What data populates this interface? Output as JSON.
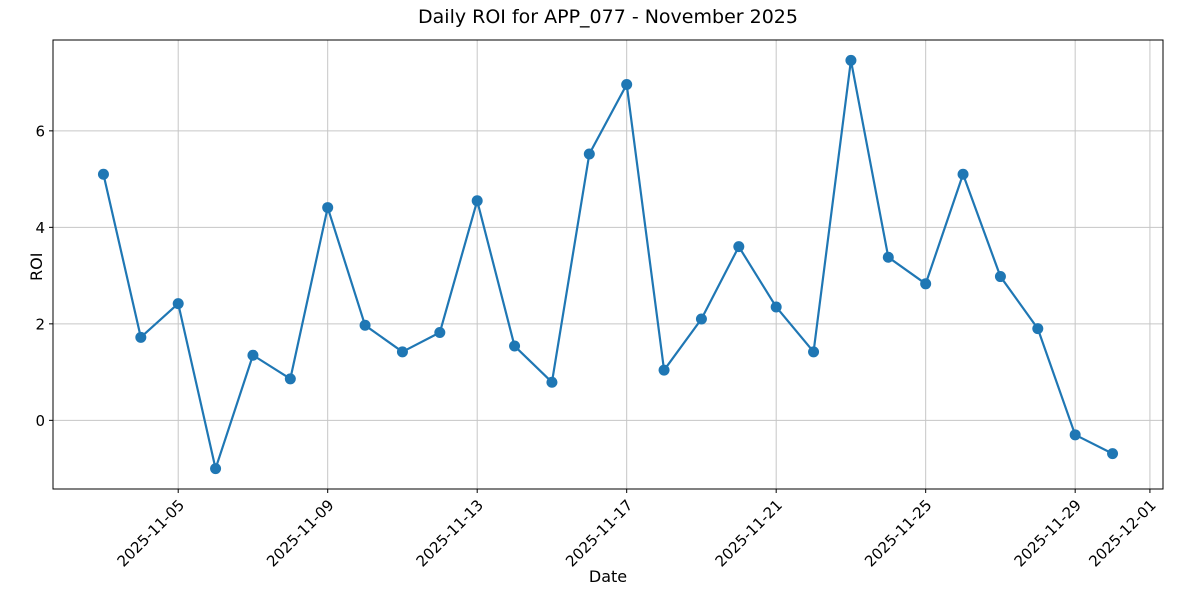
{
  "chart_data": {
    "type": "line",
    "title": "Daily ROI for APP_077 - November 2025",
    "xlabel": "Date",
    "ylabel": "ROI",
    "grid": true,
    "legend": "none",
    "line_color": "#1f77b4",
    "marker": "circle",
    "x_tick_rotation_deg": 45,
    "axis_margin": 0.05,
    "x": [
      "2025-11-03",
      "2025-11-04",
      "2025-11-05",
      "2025-11-06",
      "2025-11-07",
      "2025-11-08",
      "2025-11-09",
      "2025-11-10",
      "2025-11-11",
      "2025-11-12",
      "2025-11-13",
      "2025-11-14",
      "2025-11-15",
      "2025-11-16",
      "2025-11-17",
      "2025-11-18",
      "2025-11-19",
      "2025-11-20",
      "2025-11-21",
      "2025-11-22",
      "2025-11-23",
      "2025-11-24",
      "2025-11-25",
      "2025-11-26",
      "2025-11-27",
      "2025-11-28",
      "2025-11-29",
      "2025-11-30"
    ],
    "series": [
      {
        "name": "ROI",
        "values": [
          5.1,
          1.72,
          2.42,
          -1.0,
          1.35,
          0.86,
          4.41,
          1.97,
          1.42,
          1.82,
          4.55,
          1.54,
          0.79,
          5.52,
          6.96,
          1.04,
          2.1,
          3.6,
          2.35,
          1.42,
          7.46,
          3.38,
          2.83,
          5.1,
          2.98,
          1.9,
          -0.3,
          -0.69
        ]
      }
    ],
    "x_tick_labels": [
      "2025-11-05",
      "2025-11-09",
      "2025-11-13",
      "2025-11-17",
      "2025-11-21",
      "2025-11-25",
      "2025-11-29",
      "2025-12-01"
    ],
    "y_ticks": [
      0,
      2,
      4,
      6
    ],
    "ylim_approx": [
      -1.42,
      7.88
    ]
  }
}
